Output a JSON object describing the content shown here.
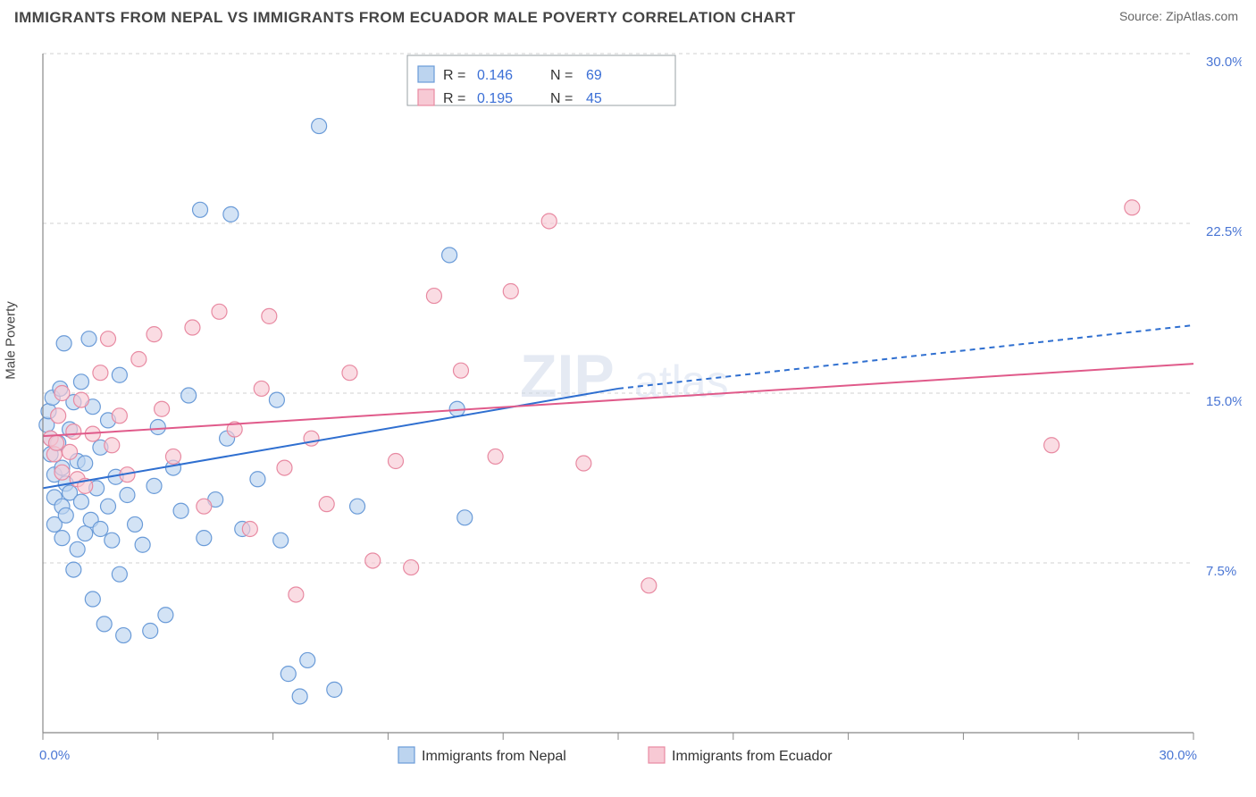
{
  "header": {
    "title": "IMMIGRANTS FROM NEPAL VS IMMIGRANTS FROM ECUADOR MALE POVERTY CORRELATION CHART",
    "source_label": "Source: ",
    "source_value": "ZipAtlas.com"
  },
  "chart": {
    "type": "scatter",
    "y_axis_label": "Male Poverty",
    "watermark": {
      "part1": "ZIP",
      "part2": "atlas"
    },
    "background_color": "#ffffff",
    "grid_color": "#d0d0d0",
    "axis_color": "#888888",
    "tick_label_color": "#4a76d4",
    "xlim": [
      0,
      30
    ],
    "ylim": [
      0,
      30
    ],
    "x_ticks": [
      0,
      3,
      6,
      9,
      12,
      15,
      18,
      21,
      24,
      27,
      30
    ],
    "x_tick_labels": {
      "0": "0.0%",
      "30": "30.0%"
    },
    "y_ticks": [
      7.5,
      15.0,
      22.5,
      30.0
    ],
    "y_tick_labels": [
      "7.5%",
      "15.0%",
      "22.5%",
      "30.0%"
    ],
    "marker_radius": 8.5,
    "marker_stroke_width": 1.2,
    "series": [
      {
        "name": "Immigrants from Nepal",
        "fill_color": "#bcd4ef",
        "stroke_color": "#6a9bd8",
        "fill_opacity": 0.65,
        "r_value": "0.146",
        "n_value": "69",
        "trend": {
          "solid_to_x": 15,
          "y_start": 10.8,
          "y_at_solid_end": 15.2,
          "y_end": 18.0,
          "color": "#2f6fd0",
          "width": 2
        },
        "points": [
          [
            0.1,
            13.6
          ],
          [
            0.15,
            14.2
          ],
          [
            0.2,
            12.3
          ],
          [
            0.2,
            13.0
          ],
          [
            0.25,
            14.8
          ],
          [
            0.3,
            11.4
          ],
          [
            0.3,
            10.4
          ],
          [
            0.3,
            9.2
          ],
          [
            0.4,
            12.8
          ],
          [
            0.45,
            15.2
          ],
          [
            0.5,
            10.0
          ],
          [
            0.5,
            8.6
          ],
          [
            0.5,
            11.7
          ],
          [
            0.55,
            17.2
          ],
          [
            0.6,
            11.0
          ],
          [
            0.6,
            9.6
          ],
          [
            0.7,
            13.4
          ],
          [
            0.7,
            10.6
          ],
          [
            0.8,
            14.6
          ],
          [
            0.8,
            7.2
          ],
          [
            0.9,
            12.0
          ],
          [
            0.9,
            8.1
          ],
          [
            1.0,
            15.5
          ],
          [
            1.0,
            10.2
          ],
          [
            1.1,
            8.8
          ],
          [
            1.1,
            11.9
          ],
          [
            1.2,
            17.4
          ],
          [
            1.25,
            9.4
          ],
          [
            1.3,
            14.4
          ],
          [
            1.3,
            5.9
          ],
          [
            1.4,
            10.8
          ],
          [
            1.5,
            9.0
          ],
          [
            1.5,
            12.6
          ],
          [
            1.6,
            4.8
          ],
          [
            1.7,
            10.0
          ],
          [
            1.7,
            13.8
          ],
          [
            1.8,
            8.5
          ],
          [
            1.9,
            11.3
          ],
          [
            2.0,
            15.8
          ],
          [
            2.0,
            7.0
          ],
          [
            2.1,
            4.3
          ],
          [
            2.2,
            10.5
          ],
          [
            2.4,
            9.2
          ],
          [
            2.6,
            8.3
          ],
          [
            2.8,
            4.5
          ],
          [
            2.9,
            10.9
          ],
          [
            3.0,
            13.5
          ],
          [
            3.2,
            5.2
          ],
          [
            3.4,
            11.7
          ],
          [
            3.6,
            9.8
          ],
          [
            3.8,
            14.9
          ],
          [
            4.1,
            23.1
          ],
          [
            4.2,
            8.6
          ],
          [
            4.5,
            10.3
          ],
          [
            4.8,
            13.0
          ],
          [
            4.9,
            22.9
          ],
          [
            5.2,
            9.0
          ],
          [
            5.6,
            11.2
          ],
          [
            6.1,
            14.7
          ],
          [
            6.2,
            8.5
          ],
          [
            6.4,
            2.6
          ],
          [
            6.7,
            1.6
          ],
          [
            6.9,
            3.2
          ],
          [
            7.2,
            26.8
          ],
          [
            7.6,
            1.9
          ],
          [
            8.2,
            10.0
          ],
          [
            10.6,
            21.1
          ],
          [
            10.8,
            14.3
          ],
          [
            11.0,
            9.5
          ]
        ]
      },
      {
        "name": "Immigrants from Ecuador",
        "fill_color": "#f7c9d4",
        "stroke_color": "#e88aa2",
        "fill_opacity": 0.65,
        "r_value": "0.195",
        "n_value": "45",
        "trend": {
          "solid_to_x": 30,
          "y_start": 13.1,
          "y_at_solid_end": 16.3,
          "y_end": 16.3,
          "color": "#e05a8a",
          "width": 2
        },
        "points": [
          [
            0.2,
            13.0
          ],
          [
            0.3,
            12.3
          ],
          [
            0.35,
            12.8
          ],
          [
            0.4,
            14.0
          ],
          [
            0.5,
            11.5
          ],
          [
            0.5,
            15.0
          ],
          [
            0.7,
            12.4
          ],
          [
            0.8,
            13.3
          ],
          [
            0.9,
            11.2
          ],
          [
            1.0,
            14.7
          ],
          [
            1.1,
            10.9
          ],
          [
            1.3,
            13.2
          ],
          [
            1.5,
            15.9
          ],
          [
            1.7,
            17.4
          ],
          [
            1.8,
            12.7
          ],
          [
            2.0,
            14.0
          ],
          [
            2.2,
            11.4
          ],
          [
            2.5,
            16.5
          ],
          [
            2.9,
            17.6
          ],
          [
            3.1,
            14.3
          ],
          [
            3.4,
            12.2
          ],
          [
            3.9,
            17.9
          ],
          [
            4.2,
            10.0
          ],
          [
            4.6,
            18.6
          ],
          [
            5.0,
            13.4
          ],
          [
            5.4,
            9.0
          ],
          [
            5.7,
            15.2
          ],
          [
            5.9,
            18.4
          ],
          [
            6.3,
            11.7
          ],
          [
            6.6,
            6.1
          ],
          [
            7.0,
            13.0
          ],
          [
            7.4,
            10.1
          ],
          [
            8.0,
            15.9
          ],
          [
            8.6,
            7.6
          ],
          [
            9.2,
            12.0
          ],
          [
            9.6,
            7.3
          ],
          [
            10.2,
            19.3
          ],
          [
            10.9,
            16.0
          ],
          [
            11.8,
            12.2
          ],
          [
            12.2,
            19.5
          ],
          [
            13.2,
            22.6
          ],
          [
            14.1,
            11.9
          ],
          [
            15.8,
            6.5
          ],
          [
            26.3,
            12.7
          ],
          [
            28.4,
            23.2
          ]
        ]
      }
    ],
    "top_legend": {
      "r_label": "R =",
      "n_label": "N ="
    },
    "bottom_legend": {
      "items": [
        "Immigrants from Nepal",
        "Immigrants from Ecuador"
      ]
    }
  }
}
